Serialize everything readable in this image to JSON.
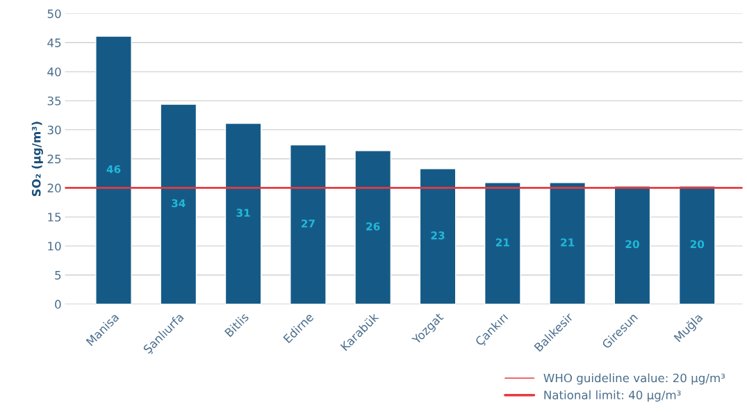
{
  "chart_data": {
    "type": "bar",
    "ylabel": "SO₂ (µg/m³)",
    "categories": [
      "Manisa",
      "Şanlıurfa",
      "Bitlis",
      "Edirne",
      "Karabük",
      "Yozgat",
      "Çankırı",
      "Balıkesir",
      "Giresun",
      "Muğla"
    ],
    "values": [
      46.1,
      34.4,
      31.1,
      27.4,
      26.4,
      23.3,
      20.9,
      20.9,
      20.3,
      20.3
    ],
    "value_labels": [
      "46",
      "34",
      "31",
      "27",
      "26",
      "23",
      "21",
      "21",
      "20",
      "20"
    ],
    "color": "#155a87",
    "ylim": [
      0,
      50
    ],
    "yticks": [
      0,
      5,
      10,
      15,
      20,
      25,
      30,
      35,
      40,
      45,
      50
    ],
    "grid": "y",
    "ref_lines": [
      {
        "axis": "y",
        "value": 20,
        "label": "WHO guideline value: 20 µg/m³",
        "color": "#e8393f"
      }
    ],
    "annotations": [
      "National limit: 40 µg/m³"
    ],
    "legend": "bottom right"
  }
}
